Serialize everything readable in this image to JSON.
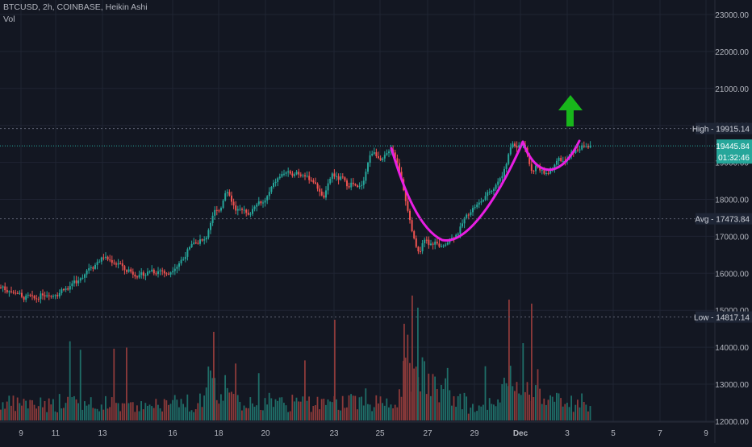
{
  "header": {
    "title": "BTCUSD, 2h, COINBASE, Heikin Ashi",
    "volume_label": "Vol"
  },
  "colors": {
    "background": "#131722",
    "grid": "#1f2433",
    "up": "#26a69a",
    "down": "#ef5350",
    "volume_up": "#1f6e68",
    "volume_down": "#8c3a3a",
    "axis_text": "#b2b5be",
    "price_badge": "#26a69a",
    "pattern_curve": "#e91ee3",
    "arrow": "#18b61b"
  },
  "chart_data": {
    "type": "candlestick",
    "symbol": "BTCUSD",
    "interval": "2h",
    "exchange": "COINBASE",
    "style": "Heikin Ashi",
    "x_tick_labels": [
      "9",
      "11",
      "13",
      "16",
      "18",
      "20",
      "23",
      "25",
      "27",
      "29",
      "Dec",
      "3",
      "5",
      "7",
      "9"
    ],
    "y_tick_labels": [
      "23000.00",
      "22000.00",
      "21000.00",
      "20000.00",
      "19000.00",
      "18000.00",
      "17000.00",
      "16000.00",
      "15000.00",
      "14000.00",
      "13000.00",
      "12000.00"
    ],
    "y_ticks": [
      23000,
      22000,
      21000,
      20000,
      19000,
      18000,
      17000,
      16000,
      15000,
      14000,
      13000,
      12000
    ],
    "ylim": [
      11900,
      23300
    ],
    "price_path": [
      [
        0,
        15600
      ],
      [
        4,
        15650
      ],
      [
        8,
        15500
      ],
      [
        12,
        15550
      ],
      [
        16,
        15450
      ],
      [
        20,
        15500
      ],
      [
        24,
        15450
      ],
      [
        28,
        15300
      ],
      [
        32,
        15350
      ],
      [
        36,
        15400
      ],
      [
        40,
        15350
      ],
      [
        44,
        15300
      ],
      [
        48,
        15350
      ],
      [
        52,
        15450
      ],
      [
        56,
        15400
      ],
      [
        60,
        15450
      ],
      [
        64,
        15350
      ],
      [
        68,
        15450
      ],
      [
        72,
        15400
      ],
      [
        76,
        15550
      ],
      [
        80,
        15600
      ],
      [
        84,
        15550
      ],
      [
        88,
        15700
      ],
      [
        92,
        15800
      ],
      [
        96,
        15750
      ],
      [
        100,
        15850
      ],
      [
        104,
        15950
      ],
      [
        108,
        16100
      ],
      [
        112,
        16200
      ],
      [
        116,
        16150
      ],
      [
        120,
        16300
      ],
      [
        124,
        16350
      ],
      [
        128,
        16450
      ],
      [
        132,
        16400
      ],
      [
        136,
        16350
      ],
      [
        140,
        16300
      ],
      [
        144,
        16250
      ],
      [
        148,
        16300
      ],
      [
        152,
        16150
      ],
      [
        156,
        16050
      ],
      [
        160,
        16100
      ],
      [
        164,
        16000
      ],
      [
        168,
        15950
      ],
      [
        172,
        15900
      ],
      [
        176,
        16000
      ],
      [
        180,
        15950
      ],
      [
        184,
        16050
      ],
      [
        188,
        16100
      ],
      [
        192,
        16000
      ],
      [
        196,
        16050
      ],
      [
        200,
        16100
      ],
      [
        204,
        16000
      ],
      [
        208,
        15950
      ],
      [
        212,
        16050
      ],
      [
        216,
        16150
      ],
      [
        220,
        16200
      ],
      [
        224,
        16350
      ],
      [
        228,
        16400
      ],
      [
        232,
        16600
      ],
      [
        236,
        16700
      ],
      [
        240,
        16850
      ],
      [
        244,
        16800
      ],
      [
        248,
        16900
      ],
      [
        252,
        16850
      ],
      [
        256,
        17000
      ],
      [
        260,
        17300
      ],
      [
        264,
        17600
      ],
      [
        268,
        17750
      ],
      [
        272,
        17700
      ],
      [
        276,
        17900
      ],
      [
        280,
        18250
      ],
      [
        284,
        18150
      ],
      [
        288,
        17900
      ],
      [
        292,
        17700
      ],
      [
        296,
        17800
      ],
      [
        300,
        17750
      ],
      [
        304,
        17650
      ],
      [
        308,
        17550
      ],
      [
        312,
        17700
      ],
      [
        316,
        17850
      ],
      [
        320,
        17950
      ],
      [
        324,
        17850
      ],
      [
        328,
        17950
      ],
      [
        332,
        18100
      ],
      [
        336,
        18300
      ],
      [
        340,
        18450
      ],
      [
        344,
        18550
      ],
      [
        348,
        18650
      ],
      [
        352,
        18700
      ],
      [
        356,
        18750
      ],
      [
        360,
        18650
      ],
      [
        364,
        18700
      ],
      [
        368,
        18750
      ],
      [
        372,
        18650
      ],
      [
        376,
        18700
      ],
      [
        380,
        18600
      ],
      [
        384,
        18550
      ],
      [
        388,
        18500
      ],
      [
        392,
        18350
      ],
      [
        396,
        18250
      ],
      [
        400,
        18000
      ],
      [
        404,
        18200
      ],
      [
        408,
        18500
      ],
      [
        412,
        18700
      ],
      [
        416,
        18600
      ],
      [
        420,
        18550
      ],
      [
        424,
        18600
      ],
      [
        428,
        18450
      ],
      [
        432,
        18350
      ],
      [
        436,
        18450
      ],
      [
        440,
        18350
      ],
      [
        444,
        18300
      ],
      [
        448,
        18400
      ],
      [
        452,
        18600
      ],
      [
        456,
        19000
      ],
      [
        460,
        19250
      ],
      [
        464,
        19300
      ],
      [
        468,
        19150
      ],
      [
        472,
        19000
      ],
      [
        476,
        19150
      ],
      [
        480,
        19250
      ],
      [
        484,
        19400
      ],
      [
        488,
        19250
      ],
      [
        492,
        19000
      ],
      [
        496,
        18700
      ],
      [
        500,
        18300
      ],
      [
        504,
        17800
      ],
      [
        508,
        17400
      ],
      [
        512,
        17000
      ],
      [
        516,
        16700
      ],
      [
        520,
        16500
      ],
      [
        524,
        16800
      ],
      [
        528,
        16950
      ],
      [
        532,
        16750
      ],
      [
        536,
        16800
      ],
      [
        540,
        16850
      ],
      [
        544,
        16700
      ],
      [
        548,
        16700
      ],
      [
        552,
        16800
      ],
      [
        556,
        16900
      ],
      [
        560,
        16950
      ],
      [
        564,
        17000
      ],
      [
        568,
        17100
      ],
      [
        572,
        17300
      ],
      [
        576,
        17500
      ],
      [
        580,
        17600
      ],
      [
        584,
        17700
      ],
      [
        588,
        17800
      ],
      [
        592,
        17850
      ],
      [
        596,
        17950
      ],
      [
        600,
        18000
      ],
      [
        604,
        18150
      ],
      [
        608,
        18250
      ],
      [
        612,
        18300
      ],
      [
        616,
        18450
      ],
      [
        620,
        18550
      ],
      [
        624,
        18700
      ],
      [
        628,
        19000
      ],
      [
        632,
        19350
      ],
      [
        636,
        19550
      ],
      [
        640,
        19400
      ],
      [
        644,
        19500
      ],
      [
        648,
        19450
      ],
      [
        652,
        19350
      ],
      [
        656,
        19000
      ],
      [
        660,
        18650
      ],
      [
        664,
        18950
      ],
      [
        668,
        18800
      ],
      [
        672,
        18750
      ],
      [
        676,
        18700
      ],
      [
        680,
        18750
      ],
      [
        684,
        18850
      ],
      [
        688,
        19000
      ],
      [
        692,
        19100
      ],
      [
        696,
        19050
      ],
      [
        700,
        19000
      ],
      [
        704,
        19100
      ],
      [
        708,
        19250
      ],
      [
        712,
        19300
      ],
      [
        716,
        19350
      ],
      [
        720,
        19400
      ],
      [
        724,
        19450
      ],
      [
        728,
        19420
      ],
      [
        732,
        19445
      ]
    ],
    "volume_profile_note": "volume histogram at bottom, up bars teal, down bars red",
    "annotations": {
      "high": {
        "label": "High",
        "value": "19915.14",
        "price": 19915.14
      },
      "price": {
        "value": "19445.84",
        "countdown": "01:32:46",
        "price": 19445.84
      },
      "avg": {
        "label": "Avg",
        "value": "17473.84",
        "price": 17473.84
      },
      "low": {
        "label": "Low",
        "value": "14817.14",
        "price": 14817.14
      }
    },
    "drawings": [
      {
        "type": "curve",
        "name": "cup"
      },
      {
        "type": "curve",
        "name": "handle"
      },
      {
        "type": "arrow",
        "direction": "up"
      }
    ],
    "grid": true
  }
}
